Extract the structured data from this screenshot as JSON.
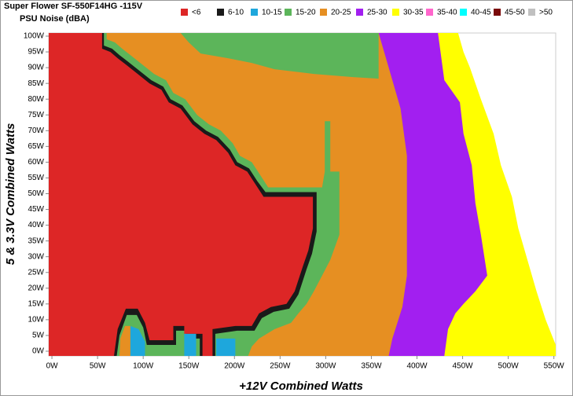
{
  "chart_data": {
    "type": "heatmap",
    "title": "Super Flower SF-550F14HG -115V",
    "subtitle": "PSU Noise (dBA)",
    "x_label": "+12V Combined Watts",
    "y_label": "5 & 3.3V Combined Watts",
    "series": [
      {
        "name": "<6",
        "color": "#dd2626"
      },
      {
        "name": "6-10",
        "color": "#1a1a1a"
      },
      {
        "name": "10-15",
        "color": "#1ea7dc"
      },
      {
        "name": "15-20",
        "color": "#5cb55a"
      },
      {
        "name": "20-25",
        "color": "#e68f22"
      },
      {
        "name": "25-30",
        "color": "#a21ff0"
      },
      {
        "name": "30-35",
        "color": "#ffff00"
      },
      {
        "name": "35-40",
        "color": "#ff66cc"
      },
      {
        "name": "40-45",
        "color": "#00ffff"
      },
      {
        "name": "45-50",
        "color": "#7a0a0a"
      },
      {
        "name": ">50",
        "color": "#c0c0c0"
      }
    ],
    "regions": [
      {
        "series": 6,
        "x": [
          -3.5,
          552,
          552,
          541,
          531,
          521,
          511,
          504,
          492,
          484,
          470,
          458,
          451,
          445,
          -3.5
        ],
        "y": [
          -1.5,
          -1.5,
          2,
          10,
          19,
          29,
          39,
          49,
          59,
          69,
          80,
          90,
          95,
          101,
          101
        ]
      },
      {
        "series": 5,
        "x": [
          -3.5,
          430,
          434,
          442,
          451,
          464,
          477,
          470,
          464,
          460,
          451,
          447,
          430,
          423,
          -3.5
        ],
        "y": [
          -1.5,
          -1.5,
          7,
          12,
          15,
          19,
          24,
          37,
          47,
          59,
          69,
          79,
          86,
          101,
          101
        ]
      },
      {
        "series": 4,
        "x": [
          -3.5,
          369,
          373,
          384,
          389,
          389,
          382,
          373,
          365,
          358,
          -3.5
        ],
        "y": [
          -1.5,
          -1.5,
          4,
          14,
          24,
          62,
          77,
          86,
          94,
          101,
          101
        ]
      },
      {
        "series": 3,
        "x": [
          141,
          358,
          358,
          330,
          287,
          244,
          219,
          193,
          163,
          150
        ],
        "y": [
          101,
          101,
          86.5,
          87,
          88,
          89.5,
          91.5,
          93,
          94.5,
          98
        ]
      },
      {
        "series": 3,
        "x": [
          -3.5,
          60,
          60,
          69,
          77,
          86,
          99,
          112,
          125,
          133,
          146,
          159,
          172,
          185,
          198,
          206,
          219,
          228,
          237,
          296,
          299,
          299,
          305,
          305,
          315,
          315,
          305,
          296,
          287,
          279,
          270,
          262,
          244,
          227,
          219,
          215,
          -3.5
        ],
        "y": [
          101,
          101,
          99,
          98,
          96,
          94,
          91,
          88,
          86,
          82,
          80,
          75,
          72,
          70,
          66,
          62,
          60,
          56,
          52,
          52,
          57,
          73,
          73,
          57,
          57,
          37,
          29,
          24,
          19,
          15,
          12,
          9,
          7,
          4,
          1.5,
          -1.5,
          -1.5
        ]
      },
      {
        "series": 1,
        "x": [
          -3.5,
          57,
          57,
          66,
          74,
          83,
          96,
          109,
          122,
          130,
          143,
          156,
          169,
          182,
          195,
          203,
          216,
          225,
          234,
          290,
          290,
          285,
          279,
          270,
          260,
          243,
          230,
          222,
          203,
          179,
          179,
          162,
          162,
          147,
          147,
          136,
          136,
          104,
          100,
          93,
          82,
          74,
          71,
          -3.5
        ],
        "y": [
          101,
          101,
          97,
          96,
          94,
          92,
          89,
          86,
          84,
          80,
          78,
          73,
          70,
          68,
          64,
          60,
          58,
          54,
          50.5,
          50.5,
          38,
          31,
          26,
          18,
          13.5,
          12.5,
          10.5,
          6.5,
          6.5,
          5.5,
          -1.5,
          -1.5,
          4,
          4,
          6.5,
          6.5,
          2,
          2,
          7.5,
          11.5,
          11.5,
          5,
          -1.5,
          -1.5
        ]
      },
      {
        "series": 0,
        "x": [
          -3.5,
          55,
          55,
          64,
          72,
          81,
          94,
          107,
          120,
          128,
          141,
          154,
          167,
          180,
          193,
          201,
          214,
          223,
          232,
          286,
          286,
          281,
          275,
          266,
          257,
          240,
          227,
          219,
          201,
          176,
          176,
          165,
          165,
          145,
          145,
          133,
          133,
          107,
          102,
          94,
          81,
          72,
          68,
          -3.5
        ],
        "y": [
          101,
          101,
          96,
          95,
          93,
          91,
          88,
          85,
          83,
          79,
          77,
          72,
          69,
          67,
          63,
          59,
          57,
          53,
          49,
          49,
          39,
          32,
          27,
          19,
          15,
          14,
          12,
          8,
          8,
          7,
          -1.5,
          -1.5,
          5.5,
          5.5,
          8,
          8,
          3.5,
          3.5,
          9,
          13.5,
          13.5,
          7,
          -1.5,
          -1.5
        ]
      },
      {
        "series": 4,
        "x": [
          74,
          75,
          80,
          86,
          86
        ],
        "y": [
          -1.5,
          4,
          8,
          8,
          -1.5
        ]
      },
      {
        "series": 2,
        "x": [
          86,
          86,
          95,
          102,
          102
        ],
        "y": [
          -1.5,
          8,
          7,
          3,
          -1.5
        ]
      },
      {
        "series": 2,
        "x": [
          145,
          145,
          158,
          158
        ],
        "y": [
          -1.5,
          5.5,
          5.5,
          -1.5
        ]
      },
      {
        "series": 2,
        "x": [
          180,
          180,
          201,
          201
        ],
        "y": [
          -1.5,
          4,
          4,
          -1.5
        ]
      }
    ],
    "xlim": [
      -3.5,
      552
    ],
    "ylim": [
      -1.5,
      101
    ],
    "xticks": [
      {
        "value": 0,
        "label": "0W"
      },
      {
        "value": 50,
        "label": "50W"
      },
      {
        "value": 100,
        "label": "100W"
      },
      {
        "value": 150,
        "label": "150W"
      },
      {
        "value": 200,
        "label": "200W"
      },
      {
        "value": 250,
        "label": "250W"
      },
      {
        "value": 300,
        "label": "300W"
      },
      {
        "value": 350,
        "label": "350W"
      },
      {
        "value": 400,
        "label": "400W"
      },
      {
        "value": 450,
        "label": "450W"
      },
      {
        "value": 500,
        "label": "500W"
      },
      {
        "value": 550,
        "label": "550W"
      }
    ],
    "yticks": [
      {
        "value": 0,
        "label": "0W"
      },
      {
        "value": 5,
        "label": "5W"
      },
      {
        "value": 10,
        "label": "10W"
      },
      {
        "value": 15,
        "label": "15W"
      },
      {
        "value": 20,
        "label": "20W"
      },
      {
        "value": 25,
        "label": "25W"
      },
      {
        "value": 30,
        "label": "30W"
      },
      {
        "value": 35,
        "label": "35W"
      },
      {
        "value": 40,
        "label": "40W"
      },
      {
        "value": 45,
        "label": "45W"
      },
      {
        "value": 50,
        "label": "50W"
      },
      {
        "value": 55,
        "label": "55W"
      },
      {
        "value": 60,
        "label": "60W"
      },
      {
        "value": 65,
        "label": "65W"
      },
      {
        "value": 70,
        "label": "70W"
      },
      {
        "value": 75,
        "label": "75W"
      },
      {
        "value": 80,
        "label": "80W"
      },
      {
        "value": 85,
        "label": "85W"
      },
      {
        "value": 90,
        "label": "90W"
      },
      {
        "value": 95,
        "label": "95W"
      },
      {
        "value": 100,
        "label": "100W"
      }
    ]
  }
}
